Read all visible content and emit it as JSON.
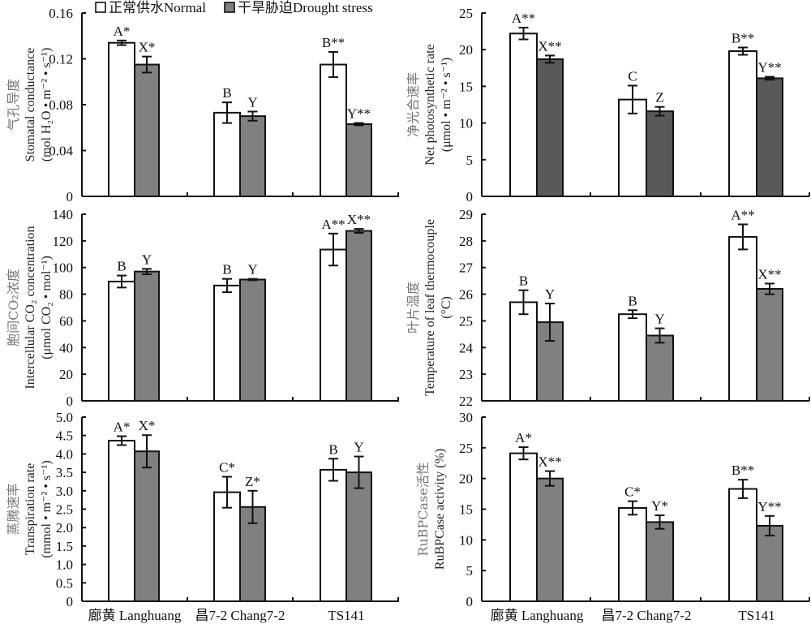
{
  "legend": {
    "normal_label": "正常供水Normal",
    "drought_label": "干旱胁迫Drought stress"
  },
  "colors": {
    "normal_fill": "#ffffff",
    "drought_fill": "#808080",
    "drought_fill_dark": "#595959",
    "stroke": "#111111"
  },
  "categories": [
    "廊黄 Langhuang",
    "昌7-2 Chang7-2",
    "TS141"
  ],
  "chart_data": [
    {
      "type": "bar",
      "id": "stomatal-conductance",
      "title": "",
      "ylabel_cn": "气孔导度",
      "ylabel_en": "Stomatal conductance",
      "ylabel_unit": "(mol H₂O • m⁻² • s⁻¹)",
      "ylim": [
        0,
        0.16
      ],
      "yticks": [
        "0",
        "0.04",
        "0.08",
        "0.12",
        "0.16"
      ],
      "ytick_values": [
        0,
        0.04,
        0.08,
        0.12,
        0.16
      ],
      "categories": [
        "廊黄 Langhuang",
        "昌7-2 Chang7-2",
        "TS141"
      ],
      "series": [
        {
          "name": "正常供水Normal",
          "values": [
            0.134,
            0.073,
            0.115
          ],
          "errors": [
            0.002,
            0.009,
            0.011
          ],
          "labels": [
            "A*",
            "B",
            "B**"
          ]
        },
        {
          "name": "干旱胁迫Drought stress",
          "values": [
            0.115,
            0.07,
            0.063
          ],
          "errors": [
            0.007,
            0.004,
            0.001
          ],
          "labels": [
            "X*",
            "Y",
            "Y**"
          ]
        }
      ],
      "drought_dark": false,
      "show_category_labels": false
    },
    {
      "type": "bar",
      "id": "net-photosynthetic-rate",
      "title": "",
      "ylabel_cn": "净光合速率",
      "ylabel_en": "Net photosynthetic rate",
      "ylabel_unit": "(μmol • m⁻² • s⁻¹)",
      "ylim": [
        0,
        25
      ],
      "yticks": [
        "0",
        "5",
        "10",
        "15",
        "20",
        "25"
      ],
      "ytick_values": [
        0,
        5,
        10,
        15,
        20,
        25
      ],
      "categories": [
        "廊黄 Langhuang",
        "昌7-2 Chang7-2",
        "TS141"
      ],
      "series": [
        {
          "name": "正常供水Normal",
          "values": [
            22.2,
            13.2,
            19.8
          ],
          "errors": [
            0.8,
            1.9,
            0.5
          ],
          "labels": [
            "A**",
            "C",
            "B**"
          ]
        },
        {
          "name": "干旱胁迫Drought stress",
          "values": [
            18.7,
            11.6,
            16.1
          ],
          "errors": [
            0.5,
            0.6,
            0.2
          ],
          "labels": [
            "X**",
            "Z",
            "Y**"
          ]
        }
      ],
      "drought_dark": true,
      "show_category_labels": false
    },
    {
      "type": "bar",
      "id": "intercellular-co2",
      "title": "",
      "ylabel_cn": "胞间CO₂浓度",
      "ylabel_en": "Intercellular CO₂ concentration",
      "ylabel_unit": "(μmol CO₂ • mol⁻¹)",
      "ylim": [
        0,
        140
      ],
      "yticks": [
        "0",
        "20",
        "40",
        "60",
        "80",
        "100",
        "120",
        "140"
      ],
      "ytick_values": [
        0,
        20,
        40,
        60,
        80,
        100,
        120,
        140
      ],
      "categories": [
        "廊黄 Langhuang",
        "昌7-2 Chang7-2",
        "TS141"
      ],
      "series": [
        {
          "name": "正常供水Normal",
          "values": [
            89.5,
            86.5,
            113.5
          ],
          "errors": [
            4.5,
            5.0,
            12.0
          ],
          "labels": [
            "B",
            "B",
            "A**"
          ]
        },
        {
          "name": "干旱胁迫Drought stress",
          "values": [
            97.0,
            91.0,
            127.5
          ],
          "errors": [
            2.0,
            0.5,
            1.5
          ],
          "labels": [
            "Y",
            "Y",
            "X**"
          ]
        }
      ],
      "drought_dark": false,
      "show_category_labels": false
    },
    {
      "type": "bar",
      "id": "leaf-temperature",
      "title": "",
      "ylabel_cn": "叶片温度",
      "ylabel_en": "Temperature of leaf thermocouple",
      "ylabel_unit": "(°C)",
      "ylim": [
        22,
        29
      ],
      "yticks": [
        "22",
        "23",
        "24",
        "25",
        "26",
        "27",
        "28",
        "29"
      ],
      "ytick_values": [
        22,
        23,
        24,
        25,
        26,
        27,
        28,
        29
      ],
      "categories": [
        "廊黄 Langhuang",
        "昌7-2 Chang7-2",
        "TS141"
      ],
      "series": [
        {
          "name": "正常供水Normal",
          "values": [
            25.7,
            25.25,
            28.15
          ],
          "errors": [
            0.45,
            0.15,
            0.47
          ],
          "labels": [
            "B",
            "B",
            "A**"
          ]
        },
        {
          "name": "干旱胁迫Drought stress",
          "values": [
            24.95,
            24.45,
            26.2
          ],
          "errors": [
            0.7,
            0.27,
            0.2
          ],
          "labels": [
            "Y",
            "Y",
            "X**"
          ]
        }
      ],
      "drought_dark": false,
      "show_category_labels": false
    },
    {
      "type": "bar",
      "id": "transpiration-rate",
      "title": "",
      "ylabel_cn": "蒸腾速率",
      "ylabel_en": "Transpiration rate",
      "ylabel_unit": "(mmol • m⁻² • s⁻¹)",
      "ylim": [
        0,
        5.0
      ],
      "yticks": [
        "0",
        "0.5",
        "1.0",
        "1.5",
        "2.0",
        "2.5",
        "3.0",
        "3.5",
        "4.0",
        "4.5",
        "5.0"
      ],
      "ytick_values": [
        0,
        0.5,
        1.0,
        1.5,
        2.0,
        2.5,
        3.0,
        3.5,
        4.0,
        4.5,
        5.0
      ],
      "categories": [
        "廊黄 Langhuang",
        "昌7-2 Chang7-2",
        "TS141"
      ],
      "series": [
        {
          "name": "正常供水Normal",
          "values": [
            4.36,
            2.96,
            3.57
          ],
          "errors": [
            0.12,
            0.42,
            0.3
          ],
          "labels": [
            "A*",
            "C*",
            "B"
          ]
        },
        {
          "name": "干旱胁迫Drought stress",
          "values": [
            4.07,
            2.56,
            3.5
          ],
          "errors": [
            0.44,
            0.44,
            0.43
          ],
          "labels": [
            "X*",
            "Z*",
            "Y"
          ]
        }
      ],
      "drought_dark": false,
      "show_category_labels": true
    },
    {
      "type": "bar",
      "id": "rubpcase-activity",
      "title": "",
      "ylabel_cn": "RuBPCase活性",
      "ylabel_en": "RuBPCase activity (%)",
      "ylabel_unit": "",
      "ylim": [
        0,
        30
      ],
      "yticks": [
        "0",
        "5",
        "10",
        "15",
        "20",
        "25",
        "30"
      ],
      "ytick_values": [
        0,
        5,
        10,
        15,
        20,
        25,
        30
      ],
      "categories": [
        "廊黄 Langhuang",
        "昌7-2 Chang7-2",
        "TS141"
      ],
      "series": [
        {
          "name": "正常供水Normal",
          "values": [
            24.1,
            15.2,
            18.3
          ],
          "errors": [
            1.0,
            1.1,
            1.5
          ],
          "labels": [
            "A*",
            "C*",
            "B**"
          ]
        },
        {
          "name": "干旱胁迫Drought stress",
          "values": [
            20.0,
            12.9,
            12.3
          ],
          "errors": [
            1.2,
            1.1,
            1.6
          ],
          "labels": [
            "X**",
            "Y*",
            "Y**"
          ]
        }
      ],
      "drought_dark": false,
      "show_category_labels": true
    }
  ]
}
